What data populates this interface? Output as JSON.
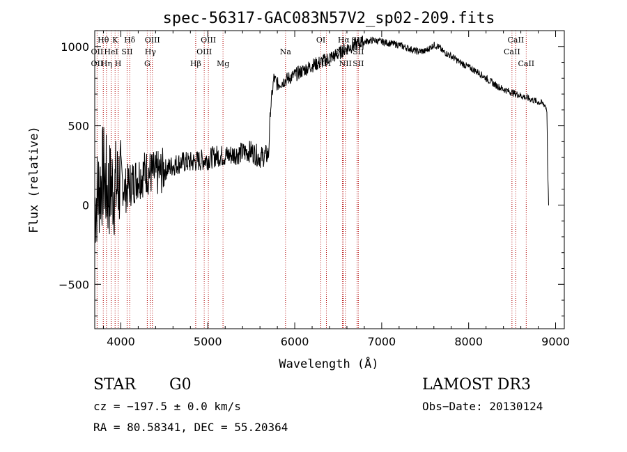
{
  "chart_data": {
    "type": "line",
    "title": "spec-56317-GAC083N57V2_sp02-209.fits",
    "xlabel": "Wavelength (Å)",
    "ylabel": "Flux (relative)",
    "xlim": [
      3700,
      9100
    ],
    "ylim": [
      -780,
      1100
    ],
    "xticks": [
      4000,
      5000,
      6000,
      7000,
      8000,
      9000
    ],
    "yticks": [
      -500,
      0,
      500,
      1000
    ],
    "line_color": "#000000",
    "marker_color": "#b00000",
    "series": [
      {
        "name": "flux",
        "x": [
          3700,
          3750,
          3800,
          3850,
          3900,
          3950,
          4000,
          4050,
          4100,
          4150,
          4200,
          4300,
          4400,
          4500,
          4600,
          4700,
          4800,
          4900,
          5000,
          5100,
          5200,
          5300,
          5400,
          5500,
          5600,
          5650,
          5700,
          5720,
          5740,
          5760,
          5780,
          5800,
          5900,
          6000,
          6100,
          6200,
          6300,
          6400,
          6500,
          6560,
          6600,
          6700,
          6800,
          6900,
          7000,
          7100,
          7200,
          7300,
          7400,
          7500,
          7600,
          7650,
          7700,
          7800,
          7900,
          8000,
          8100,
          8200,
          8300,
          8400,
          8500,
          8600,
          8700,
          8800,
          8850,
          8880,
          8900,
          8910,
          8920
        ],
        "y": [
          0,
          100,
          200,
          80,
          120,
          100,
          180,
          90,
          130,
          150,
          180,
          210,
          190,
          220,
          250,
          270,
          270,
          280,
          290,
          310,
          310,
          320,
          330,
          340,
          300,
          310,
          320,
          600,
          700,
          800,
          780,
          760,
          790,
          820,
          850,
          880,
          900,
          930,
          950,
          980,
          990,
          1010,
          1030,
          1040,
          1030,
          1020,
          1010,
          990,
          970,
          970,
          1010,
          1000,
          970,
          940,
          900,
          870,
          840,
          800,
          760,
          730,
          710,
          690,
          670,
          650,
          640,
          630,
          600,
          200,
          0
        ]
      }
    ],
    "lines": [
      {
        "label": "Hθ",
        "x": 3798,
        "row": 1
      },
      {
        "label": "OII",
        "x": 3727,
        "row": 2
      },
      {
        "label": "Hη",
        "x": 3835,
        "row": 3
      },
      {
        "label": "OII",
        "x": 3727,
        "row": 3
      },
      {
        "label": "K",
        "x": 3934,
        "row": 1
      },
      {
        "label": "HeI",
        "x": 3889,
        "row": 2
      },
      {
        "label": "H",
        "x": 3969,
        "row": 3
      },
      {
        "label": "Hδ",
        "x": 4102,
        "row": 1
      },
      {
        "label": "SII",
        "x": 4072,
        "row": 2
      },
      {
        "label": "OIII",
        "x": 4363,
        "row": 1
      },
      {
        "label": "Hγ",
        "x": 4340,
        "row": 2
      },
      {
        "label": "G",
        "x": 4304,
        "row": 3
      },
      {
        "label": "Hβ",
        "x": 4861,
        "row": 3
      },
      {
        "label": "OIII",
        "x": 5007,
        "row": 1
      },
      {
        "label": "OIII",
        "x": 4959,
        "row": 2
      },
      {
        "label": "Mg",
        "x": 5175,
        "row": 3
      },
      {
        "label": "Na",
        "x": 5894,
        "row": 2
      },
      {
        "label": "OI",
        "x": 6300,
        "row": 1
      },
      {
        "label": "OI",
        "x": 6364,
        "row": 3
      },
      {
        "label": "Hα",
        "x": 6563,
        "row": 1
      },
      {
        "label": "NII",
        "x": 6548,
        "row": 2
      },
      {
        "label": "NII",
        "x": 6583,
        "row": 3
      },
      {
        "label": "SII",
        "x": 6717,
        "row": 1
      },
      {
        "label": "SII",
        "x": 6731,
        "row": 2
      },
      {
        "label": "SII",
        "x": 6731,
        "row": 3
      },
      {
        "label": "CaII",
        "x": 8542,
        "row": 1
      },
      {
        "label": "CaII",
        "x": 8498,
        "row": 2
      },
      {
        "label": "CaII",
        "x": 8662,
        "row": 3
      }
    ]
  },
  "info": {
    "object_class": "STAR",
    "subclass": "G0",
    "survey": "LAMOST DR3",
    "redshift": "cz = −197.5 ± 0.0 km/s",
    "obs_date": "Obs−Date: 20130124",
    "coords": "RA =  80.58341, DEC =  55.20364"
  }
}
